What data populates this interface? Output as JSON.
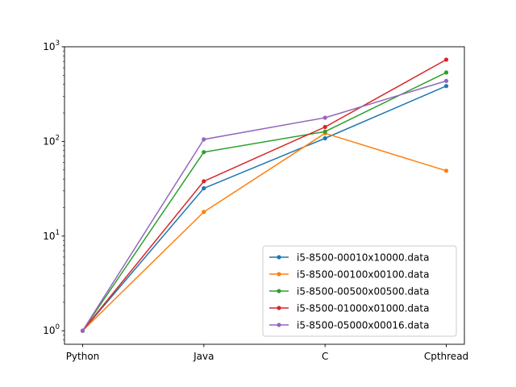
{
  "chart_data": {
    "type": "line",
    "title": "",
    "xlabel": "",
    "ylabel": "",
    "categories": [
      "Python",
      "Java",
      "C",
      "Cpthread"
    ],
    "yscale": "log",
    "ylim": [
      0.72,
      1000
    ],
    "y_tick_labels": [
      {
        "base": "10",
        "exp": "0",
        "value": 1
      },
      {
        "base": "10",
        "exp": "1",
        "value": 10
      },
      {
        "base": "10",
        "exp": "2",
        "value": 100
      },
      {
        "base": "10",
        "exp": "3",
        "value": 1000
      }
    ],
    "grid": false,
    "legend_position": "lower right",
    "marker": "dot",
    "series": [
      {
        "name": "i5-8500-00010x10000.data",
        "color": "#1f77b4",
        "values": [
          1,
          32,
          108,
          385
        ]
      },
      {
        "name": "i5-8500-00100x00100.data",
        "color": "#ff7f0e",
        "values": [
          1,
          18,
          122,
          49
        ]
      },
      {
        "name": "i5-8500-00500x00500.data",
        "color": "#2ca02c",
        "values": [
          1,
          77,
          127,
          535
        ]
      },
      {
        "name": "i5-8500-01000x01000.data",
        "color": "#d62728",
        "values": [
          1,
          38,
          142,
          730
        ]
      },
      {
        "name": "i5-8500-05000x00016.data",
        "color": "#9467bd",
        "values": [
          1,
          105,
          178,
          435
        ]
      }
    ]
  }
}
